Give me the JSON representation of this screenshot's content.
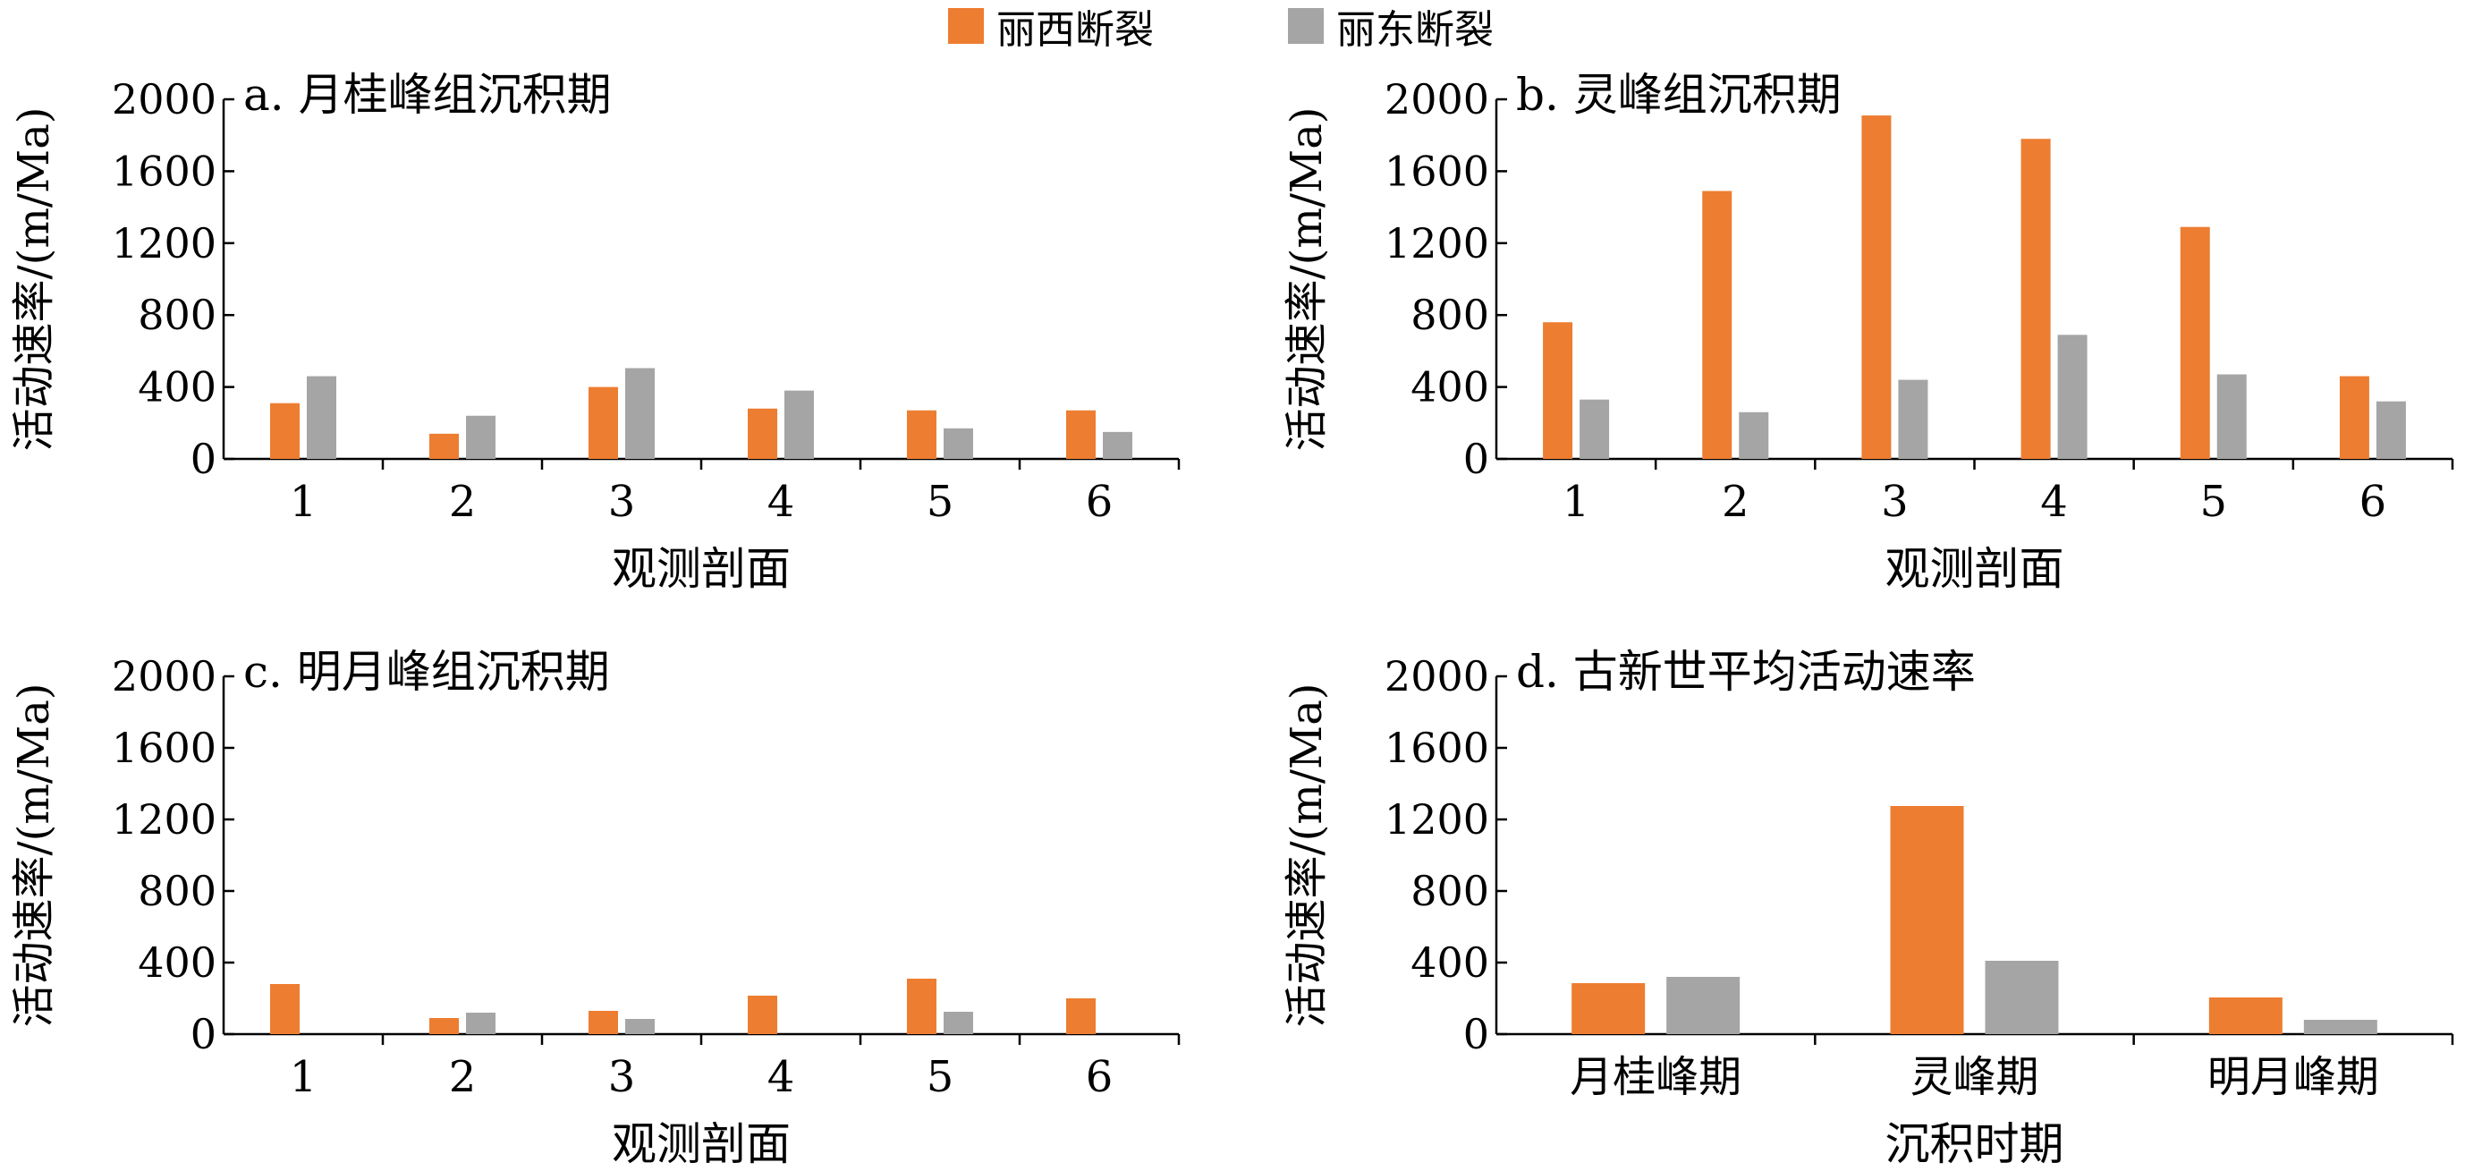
{
  "legend": [
    {
      "name": "丽西断裂",
      "color": "#ED7D31"
    },
    {
      "name": "丽东断裂",
      "color": "#A5A5A5"
    }
  ],
  "chart_data": [
    {
      "type": "bar",
      "title": "a. 月桂峰组沉积期",
      "xlabel": "观测剖面",
      "ylabel": "活动速率/(m/Ma)",
      "ylim": [
        0,
        2000
      ],
      "yticks": [
        0,
        400,
        800,
        1200,
        1600,
        2000
      ],
      "categories": [
        "1",
        "2",
        "3",
        "4",
        "5",
        "6"
      ],
      "series": [
        {
          "name": "丽西断裂",
          "values": [
            310,
            140,
            400,
            280,
            270,
            270
          ]
        },
        {
          "name": "丽东断裂",
          "values": [
            460,
            240,
            505,
            380,
            170,
            150
          ]
        }
      ]
    },
    {
      "type": "bar",
      "title": "b. 灵峰组沉积期",
      "xlabel": "观测剖面",
      "ylabel": "活动速率/(m/Ma)",
      "ylim": [
        0,
        2000
      ],
      "yticks": [
        0,
        400,
        800,
        1200,
        1600,
        2000
      ],
      "categories": [
        "1",
        "2",
        "3",
        "4",
        "5",
        "6"
      ],
      "series": [
        {
          "name": "丽西断裂",
          "values": [
            760,
            1490,
            1910,
            1780,
            1290,
            460
          ]
        },
        {
          "name": "丽东断裂",
          "values": [
            330,
            260,
            440,
            690,
            470,
            320
          ]
        }
      ]
    },
    {
      "type": "bar",
      "title": "c. 明月峰组沉积期",
      "xlabel": "观测剖面",
      "ylabel": "活动速率/(m/Ma)",
      "ylim": [
        0,
        2000
      ],
      "yticks": [
        0,
        400,
        800,
        1200,
        1600,
        2000
      ],
      "categories": [
        "1",
        "2",
        "3",
        "4",
        "5",
        "6"
      ],
      "series": [
        {
          "name": "丽西断裂",
          "values": [
            280,
            90,
            130,
            215,
            310,
            200
          ]
        },
        {
          "name": "丽东断裂",
          "values": [
            0,
            120,
            85,
            0,
            125,
            0
          ]
        }
      ]
    },
    {
      "type": "bar",
      "title": "d. 古新世平均活动速率",
      "xlabel": "沉积时期",
      "ylabel": "活动速率/(m/Ma)",
      "ylim": [
        0,
        2000
      ],
      "yticks": [
        0,
        400,
        800,
        1200,
        1600,
        2000
      ],
      "categories": [
        "月桂峰期",
        "灵峰期",
        "明月峰期"
      ],
      "series": [
        {
          "name": "丽西断裂",
          "values": [
            285,
            1275,
            205
          ]
        },
        {
          "name": "丽东断裂",
          "values": [
            320,
            410,
            80
          ]
        }
      ]
    }
  ]
}
